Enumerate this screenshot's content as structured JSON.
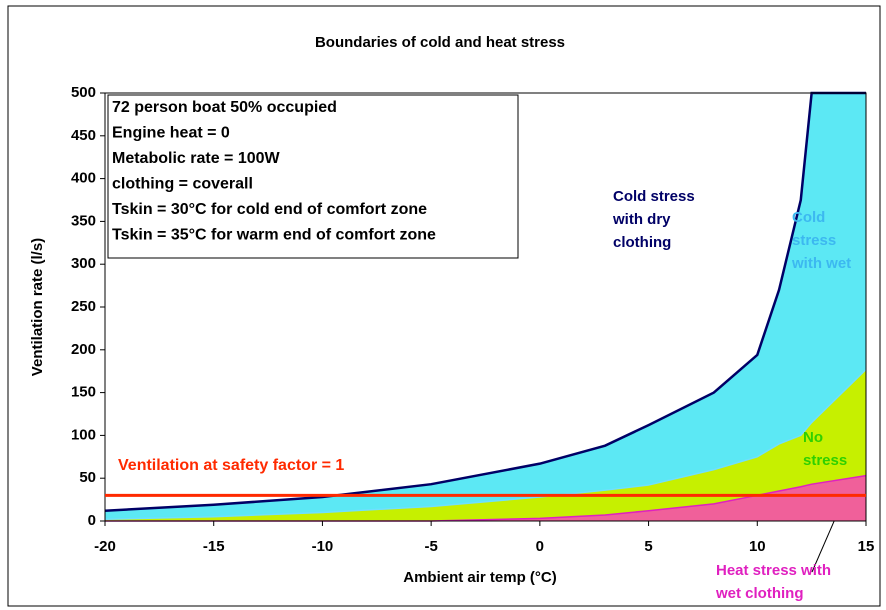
{
  "chart_data": {
    "type": "area",
    "title": "Boundaries of cold and heat stress",
    "x_label": "Ambient air temp (°C)",
    "y_label": "Ventilation rate (l/s)",
    "x": [
      -20,
      -15,
      -10,
      -5,
      0,
      3,
      5,
      8,
      10,
      11,
      12,
      12.5,
      15
    ],
    "series": [
      {
        "name": "Cold stress with wet clothing",
        "color": "#5ce8f4",
        "line_color": "#000066",
        "values": [
          12,
          19,
          28,
          43,
          67,
          88,
          112,
          150,
          194,
          270,
          375,
          500,
          500
        ]
      },
      {
        "name": "No stress",
        "color": "#c6f000",
        "line_color": "#6fe0ff",
        "values": [
          2,
          5,
          10,
          17,
          28,
          36,
          42,
          60,
          75,
          90,
          100,
          115,
          177
        ]
      },
      {
        "name": "Heat stress with wet clothing",
        "color": "#f0609a",
        "line_color": "#e020c0",
        "values": [
          0,
          0,
          0,
          0,
          3,
          7,
          12,
          20,
          30,
          35,
          40,
          43,
          53
        ]
      }
    ],
    "reference_lines": [
      {
        "label": "Ventilation at safety factor = 1",
        "value": 30,
        "color": "#ff2a00"
      }
    ],
    "annotations": [
      "Cold stress with dry clothing"
    ],
    "info_box": [
      "72 person boat 50% occupied",
      "Engine heat = 0",
      "Metabolic rate = 100W",
      "clothing = coverall",
      "Tskin = 30°C for cold end of comfort zone",
      "Tskin = 35°C for warm end of comfort zone"
    ],
    "xlim": [
      -20,
      15
    ],
    "xticks": [
      -20,
      -15,
      -10,
      -5,
      0,
      5,
      10,
      15
    ],
    "ylim": [
      0,
      500
    ],
    "yticks": [
      0,
      50,
      100,
      150,
      200,
      250,
      300,
      350,
      400,
      450,
      500
    ]
  }
}
